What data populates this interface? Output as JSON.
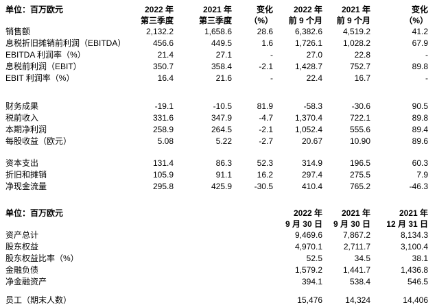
{
  "section1": {
    "unit_label": "单位：百万欧元",
    "col_headers": [
      [
        "2022 年",
        "第三季度"
      ],
      [
        "2021 年",
        "第三季度"
      ],
      [
        "变化",
        "（%）"
      ],
      [
        "2022 年",
        "前 9 个月"
      ],
      [
        "2021 年",
        "前 9 个月"
      ],
      [
        "变化",
        "（%）"
      ]
    ],
    "groups": [
      {
        "rows": [
          {
            "label": "销售额",
            "values": [
              "2,132.2",
              "1,658.6",
              "28.6",
              "6,382.6",
              "4,519.2",
              "41.2"
            ]
          },
          {
            "label": "息税折旧摊销前利润（EBITDA）",
            "values": [
              "456.6",
              "449.5",
              "1.6",
              "1,726.1",
              "1,028.2",
              "67.9"
            ]
          },
          {
            "label": "EBITDA 利润率（%）",
            "values": [
              "21.4",
              "27.1",
              "-",
              "27.0",
              "22.8",
              "-"
            ]
          },
          {
            "label": "息税前利润（EBIT）",
            "values": [
              "350.7",
              "358.4",
              "-2.1",
              "1,428.7",
              "752.7",
              "89.8"
            ]
          },
          {
            "label": "EBIT 利润率（%）",
            "values": [
              "16.4",
              "21.6",
              "-",
              "22.4",
              "16.7",
              "-"
            ]
          }
        ]
      },
      {
        "rows": [
          {
            "label": "财务成果",
            "values": [
              "-19.1",
              "-10.5",
              "81.9",
              "-58.3",
              "-30.6",
              "90.5"
            ]
          },
          {
            "label": "税前收入",
            "values": [
              "331.6",
              "347.9",
              "-4.7",
              "1,370.4",
              "722.1",
              "89.8"
            ]
          },
          {
            "label": "本期净利润",
            "values": [
              "258.9",
              "264.5",
              "-2.1",
              "1,052.4",
              "555.6",
              "89.4"
            ]
          },
          {
            "label": "每股收益（欧元）",
            "values": [
              "5.08",
              "5.22",
              "-2.7",
              "20.67",
              "10.90",
              "89.6"
            ]
          }
        ]
      },
      {
        "rows": [
          {
            "label": "资本支出",
            "values": [
              "131.4",
              "86.3",
              "52.3",
              "314.9",
              "196.5",
              "60.3"
            ]
          },
          {
            "label": "折旧和摊销",
            "values": [
              "105.9",
              "91.1",
              "16.2",
              "297.4",
              "275.5",
              "7.9"
            ]
          },
          {
            "label": "净现金流量",
            "values": [
              "295.8",
              "425.9",
              "-30.5",
              "410.4",
              "765.2",
              "-46.3"
            ]
          }
        ]
      }
    ]
  },
  "section2": {
    "unit_label": "单位：百万欧元",
    "col_headers": [
      [
        "2022 年",
        "9 月 30 日"
      ],
      [
        "2021 年",
        "9 月 30 日"
      ],
      [
        "2021 年",
        "12 月 31 日"
      ]
    ],
    "groups": [
      {
        "rows": [
          {
            "label": "资产总计",
            "values": [
              "9,469.6",
              "7,867.2",
              "8,134.3"
            ]
          },
          {
            "label": "股东权益",
            "values": [
              "4,970.1",
              "2,711.7",
              "3,100.4"
            ]
          },
          {
            "label": "股东权益比率（%）",
            "values": [
              "52.5",
              "34.5",
              "38.1"
            ]
          },
          {
            "label": "金融负债",
            "values": [
              "1,579.2",
              "1,441.7",
              "1,436.8"
            ]
          },
          {
            "label": "净金融资产",
            "values": [
              "394.1",
              "538.4",
              "546.5"
            ]
          }
        ]
      },
      {
        "rows": [
          {
            "label": "员工（期末人数）",
            "values": [
              "15,476",
              "14,324",
              "14,406"
            ]
          }
        ]
      }
    ]
  }
}
